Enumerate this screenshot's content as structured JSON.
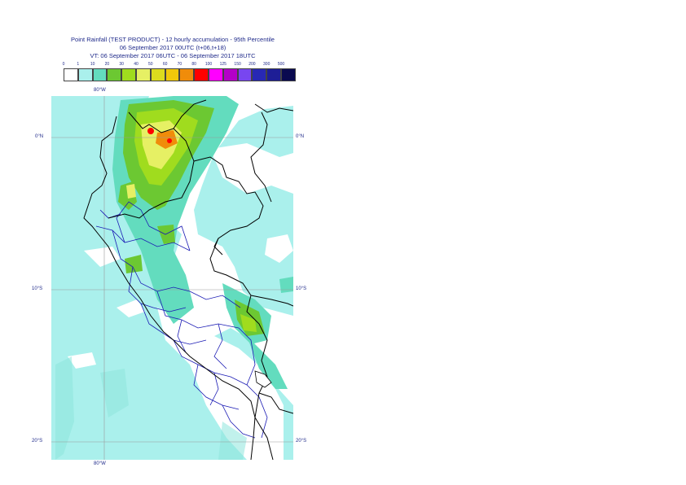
{
  "title": {
    "line1": "Point Rainfall (TEST PRODUCT) - 12 hourly accumulation - 95th Percentile",
    "line2": "06 September 2017 00UTC (t+06,t+18)",
    "line3": "VT: 06 September 2017 06UTC - 06 September 2017 18UTC"
  },
  "legend": {
    "thresholds": [
      "0",
      "1",
      "10",
      "20",
      "30",
      "40",
      "50",
      "60",
      "70",
      "80",
      "100",
      "125",
      "150",
      "200",
      "300",
      "500"
    ],
    "colors": [
      "#ffffff",
      "#aaf0ec",
      "#63dcbe",
      "#6cc832",
      "#a0dc1e",
      "#e6f064",
      "#dcdc1e",
      "#f0c80a",
      "#f08c0a",
      "#ff0000",
      "#ff00ff",
      "#b400c8",
      "#7846f0",
      "#2828b4",
      "#1e1e96",
      "#0a0a50"
    ]
  },
  "map": {
    "lat_labels": {
      "north0": "0°N",
      "south10": "10°S",
      "south20": "20°S"
    },
    "lon_labels": {
      "top": "80°W",
      "bottom": "80°W"
    },
    "colors": {
      "ocean_light": "#aaf0ec",
      "land_blank": "#ffffff",
      "green_mid": "#63dcbe",
      "green": "#6cc832",
      "lime": "#a0dc1e",
      "yellow": "#e6f064",
      "orange": "#f08c0a",
      "red": "#ff0000",
      "coast": "#000000",
      "admin": "#1a1ab4",
      "grid": "#9a9a9a"
    }
  }
}
